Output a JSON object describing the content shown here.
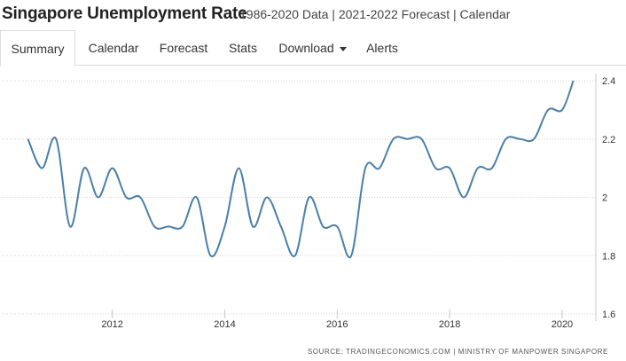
{
  "header": {
    "title": "Singapore Unemployment Rate",
    "subtitle": "1986-2020 Data | 2021-2022 Forecast | Calendar"
  },
  "tabs": [
    {
      "label": "Summary",
      "active": true
    },
    {
      "label": "Calendar",
      "active": false
    },
    {
      "label": "Forecast",
      "active": false
    },
    {
      "label": "Stats",
      "active": false
    },
    {
      "label": "Download",
      "active": false
    },
    {
      "label": "Alerts",
      "active": false
    }
  ],
  "colors": {
    "line": "#4a7fa8",
    "grid": "#d0d0d0"
  },
  "chart_data": {
    "type": "line",
    "title": "",
    "xlabel": "",
    "ylabel": "",
    "xlim": [
      2010.35,
      2020.6
    ],
    "ylim": [
      1.6,
      2.4
    ],
    "x_ticks": [
      2012,
      2014,
      2016,
      2018,
      2020
    ],
    "y_ticks": [
      1.6,
      1.8,
      2.0,
      2.2,
      2.4
    ],
    "y_tick_labels": [
      "1.6",
      "1.8",
      "2",
      "2.2",
      "2.4"
    ],
    "grid": true,
    "series": [
      {
        "x": [
          2010.5,
          2010.75,
          2011.0,
          2011.25,
          2011.5,
          2011.75,
          2012.0,
          2012.25,
          2012.5,
          2012.75,
          2013.0,
          2013.25,
          2013.5,
          2013.75,
          2014.0,
          2014.25,
          2014.5,
          2014.75,
          2015.0,
          2015.25,
          2015.5,
          2015.75,
          2016.0,
          2016.25,
          2016.5,
          2016.75,
          2017.0,
          2017.25,
          2017.5,
          2017.75,
          2018.0,
          2018.25,
          2018.5,
          2018.75,
          2019.0,
          2019.25,
          2019.5,
          2019.75,
          2020.0,
          2020.2
        ],
        "y": [
          2.2,
          2.1,
          2.2,
          1.9,
          2.1,
          2.0,
          2.1,
          2.0,
          2.0,
          1.9,
          1.9,
          1.9,
          2.0,
          1.8,
          1.9,
          2.1,
          1.9,
          2.0,
          1.9,
          1.8,
          2.0,
          1.9,
          1.9,
          1.8,
          2.1,
          2.1,
          2.2,
          2.2,
          2.2,
          2.1,
          2.1,
          2.0,
          2.1,
          2.1,
          2.2,
          2.2,
          2.2,
          2.3,
          2.3,
          2.4
        ]
      }
    ]
  },
  "source": "SOURCE: TRADINGECONOMICS.COM  |  MINISTRY OF MANPOWER SINGAPORE"
}
